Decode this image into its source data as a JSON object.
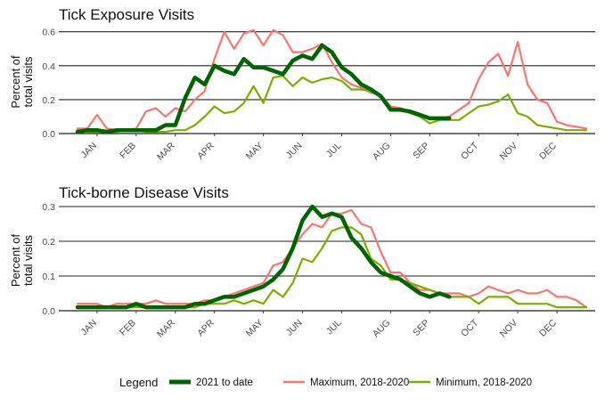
{
  "chart_data": [
    {
      "type": "line",
      "title": "Tick Exposure Visits",
      "ylabel": "Percent of\ntotal visits",
      "xlabel": "",
      "ylim": [
        0,
        0.63
      ],
      "yticks": [
        "0.0",
        "0.2",
        "0.4",
        "0.6"
      ],
      "ytick_values": [
        0,
        0.2,
        0.4,
        0.6
      ],
      "months": [
        "JAN",
        "FEB",
        "MAR",
        "APR",
        "MAY",
        "JUN",
        "JUL",
        "AUG",
        "SEP",
        "OCT",
        "NOV",
        "DEC"
      ],
      "month_weeks": [
        3,
        7,
        11,
        15,
        20,
        24,
        28,
        33,
        37,
        42,
        46,
        50
      ],
      "xlim": [
        0,
        53
      ],
      "series": [
        {
          "name": "Maximum, 2018-2020",
          "color": "#f8766d",
          "weeks": [
            1,
            2,
            3,
            4,
            5,
            6,
            7,
            8,
            9,
            10,
            11,
            12,
            13,
            14,
            15,
            16,
            17,
            18,
            19,
            20,
            21,
            22,
            23,
            24,
            25,
            26,
            27,
            28,
            29,
            30,
            31,
            32,
            33,
            34,
            35,
            36,
            37,
            38,
            39,
            40,
            41,
            42,
            43,
            44,
            45,
            46,
            47,
            48,
            49,
            50,
            51,
            52,
            53
          ],
          "values": [
            0.03,
            0.03,
            0.11,
            0.03,
            0.02,
            0.02,
            0.03,
            0.13,
            0.15,
            0.1,
            0.15,
            0.13,
            0.2,
            0.25,
            0.44,
            0.6,
            0.5,
            0.59,
            0.61,
            0.52,
            0.61,
            0.58,
            0.48,
            0.48,
            0.5,
            0.53,
            0.42,
            0.33,
            0.29,
            0.27,
            0.24,
            0.23,
            0.16,
            0.15,
            0.13,
            0.1,
            0.09,
            0.09,
            0.1,
            0.14,
            0.18,
            0.32,
            0.42,
            0.47,
            0.34,
            0.54,
            0.29,
            0.2,
            0.18,
            0.07,
            0.05,
            0.04,
            0.03
          ]
        },
        {
          "name": "Minimum, 2018-2020",
          "color": "#7cae00",
          "weeks": [
            1,
            2,
            3,
            4,
            5,
            6,
            7,
            8,
            9,
            10,
            11,
            12,
            13,
            14,
            15,
            16,
            17,
            18,
            19,
            20,
            21,
            22,
            23,
            24,
            25,
            26,
            27,
            28,
            29,
            30,
            31,
            32,
            33,
            34,
            35,
            36,
            37,
            38,
            39,
            40,
            41,
            42,
            43,
            44,
            45,
            46,
            47,
            48,
            49,
            50,
            51,
            52,
            53
          ],
          "values": [
            0.02,
            0.01,
            0.01,
            0.01,
            0.01,
            0.02,
            0.02,
            0.01,
            0.01,
            0.01,
            0.02,
            0.02,
            0.05,
            0.1,
            0.16,
            0.12,
            0.13,
            0.18,
            0.28,
            0.18,
            0.33,
            0.34,
            0.28,
            0.33,
            0.3,
            0.32,
            0.33,
            0.31,
            0.26,
            0.26,
            0.25,
            0.22,
            0.14,
            0.14,
            0.12,
            0.1,
            0.06,
            0.08,
            0.08,
            0.08,
            0.12,
            0.16,
            0.17,
            0.19,
            0.23,
            0.12,
            0.1,
            0.05,
            0.04,
            0.03,
            0.02,
            0.02,
            0.02
          ]
        },
        {
          "name": "2021 to date",
          "color": "#006400",
          "weeks": [
            1,
            2,
            3,
            4,
            5,
            6,
            7,
            8,
            9,
            10,
            11,
            12,
            13,
            14,
            15,
            16,
            17,
            18,
            19,
            20,
            21,
            22,
            23,
            24,
            25,
            26,
            27,
            28,
            29,
            30,
            31,
            32,
            33,
            34,
            35,
            36,
            37,
            38,
            39
          ],
          "values": [
            0.01,
            0.02,
            0.02,
            0.01,
            0.02,
            0.02,
            0.02,
            0.02,
            0.02,
            0.05,
            0.05,
            0.21,
            0.33,
            0.29,
            0.4,
            0.37,
            0.35,
            0.44,
            0.39,
            0.39,
            0.37,
            0.35,
            0.43,
            0.46,
            0.44,
            0.52,
            0.48,
            0.39,
            0.35,
            0.29,
            0.26,
            0.22,
            0.14,
            0.14,
            0.13,
            0.11,
            0.09,
            0.09,
            0.09
          ]
        }
      ]
    },
    {
      "type": "line",
      "title": "Tick-borne Disease Visits",
      "ylabel": "Percent of\ntotal visits",
      "xlabel": "",
      "ylim": [
        0,
        0.3
      ],
      "yticks": [
        "0.0",
        "0.1",
        "0.2",
        "0.3"
      ],
      "ytick_values": [
        0,
        0.1,
        0.2,
        0.3
      ],
      "months": [
        "JAN",
        "FEB",
        "MAR",
        "APR",
        "MAY",
        "JUN",
        "JUL",
        "AUG",
        "SEP",
        "OCT",
        "NOV",
        "DEC"
      ],
      "month_weeks": [
        3,
        7,
        11,
        15,
        20,
        24,
        28,
        33,
        37,
        42,
        46,
        50
      ],
      "xlim": [
        0,
        53
      ],
      "series": [
        {
          "name": "Maximum, 2018-2020",
          "color": "#f8766d",
          "weeks": [
            1,
            2,
            3,
            4,
            5,
            6,
            7,
            8,
            9,
            10,
            11,
            12,
            13,
            14,
            15,
            16,
            17,
            18,
            19,
            20,
            21,
            22,
            23,
            24,
            25,
            26,
            27,
            28,
            29,
            30,
            31,
            32,
            33,
            34,
            35,
            36,
            37,
            38,
            39,
            40,
            41,
            42,
            43,
            44,
            45,
            46,
            47,
            48,
            49,
            50,
            51,
            52,
            53
          ],
          "values": [
            0.02,
            0.02,
            0.02,
            0.01,
            0.02,
            0.02,
            0.02,
            0.02,
            0.03,
            0.02,
            0.02,
            0.02,
            0.02,
            0.03,
            0.03,
            0.04,
            0.05,
            0.06,
            0.07,
            0.08,
            0.13,
            0.14,
            0.18,
            0.22,
            0.25,
            0.24,
            0.28,
            0.28,
            0.29,
            0.25,
            0.24,
            0.17,
            0.11,
            0.11,
            0.08,
            0.06,
            0.06,
            0.05,
            0.05,
            0.05,
            0.04,
            0.05,
            0.07,
            0.06,
            0.05,
            0.06,
            0.05,
            0.05,
            0.06,
            0.04,
            0.04,
            0.03,
            0.01
          ]
        },
        {
          "name": "Minimum, 2018-2020",
          "color": "#7cae00",
          "weeks": [
            1,
            2,
            3,
            4,
            5,
            6,
            7,
            8,
            9,
            10,
            11,
            12,
            13,
            14,
            15,
            16,
            17,
            18,
            19,
            20,
            21,
            22,
            23,
            24,
            25,
            26,
            27,
            28,
            29,
            30,
            31,
            32,
            33,
            34,
            35,
            36,
            37,
            38,
            39,
            40,
            41,
            42,
            43,
            44,
            45,
            46,
            47,
            48,
            49,
            50,
            51,
            52,
            53
          ],
          "values": [
            0.01,
            0.01,
            0.01,
            0.01,
            0.01,
            0.01,
            0.01,
            0.01,
            0.01,
            0.01,
            0.01,
            0.01,
            0.01,
            0.02,
            0.02,
            0.02,
            0.03,
            0.02,
            0.03,
            0.02,
            0.06,
            0.04,
            0.08,
            0.15,
            0.14,
            0.18,
            0.23,
            0.24,
            0.24,
            0.22,
            0.15,
            0.13,
            0.09,
            0.09,
            0.08,
            0.07,
            0.06,
            0.05,
            0.04,
            0.04,
            0.04,
            0.02,
            0.04,
            0.04,
            0.04,
            0.02,
            0.02,
            0.02,
            0.02,
            0.01,
            0.01,
            0.01,
            0.01
          ]
        },
        {
          "name": "2021 to date",
          "color": "#006400",
          "weeks": [
            1,
            2,
            3,
            4,
            5,
            6,
            7,
            8,
            9,
            10,
            11,
            12,
            13,
            14,
            15,
            16,
            17,
            18,
            19,
            20,
            21,
            22,
            23,
            24,
            25,
            26,
            27,
            28,
            29,
            30,
            31,
            32,
            33,
            34,
            35,
            36,
            37,
            38,
            39
          ],
          "values": [
            0.01,
            0.01,
            0.01,
            0.01,
            0.01,
            0.01,
            0.02,
            0.01,
            0.01,
            0.01,
            0.01,
            0.01,
            0.02,
            0.02,
            0.03,
            0.04,
            0.04,
            0.05,
            0.06,
            0.07,
            0.09,
            0.12,
            0.18,
            0.26,
            0.3,
            0.27,
            0.28,
            0.27,
            0.21,
            0.18,
            0.14,
            0.11,
            0.1,
            0.09,
            0.07,
            0.05,
            0.04,
            0.05,
            0.04
          ]
        }
      ]
    }
  ],
  "legend": {
    "title": "Legend",
    "entries": [
      {
        "label": "2021 to date",
        "color": "#006400"
      },
      {
        "label": "Maximum, 2018-2020",
        "color": "#f8766d"
      },
      {
        "label": "Minimum, 2018-2020",
        "color": "#7cae00"
      }
    ]
  }
}
